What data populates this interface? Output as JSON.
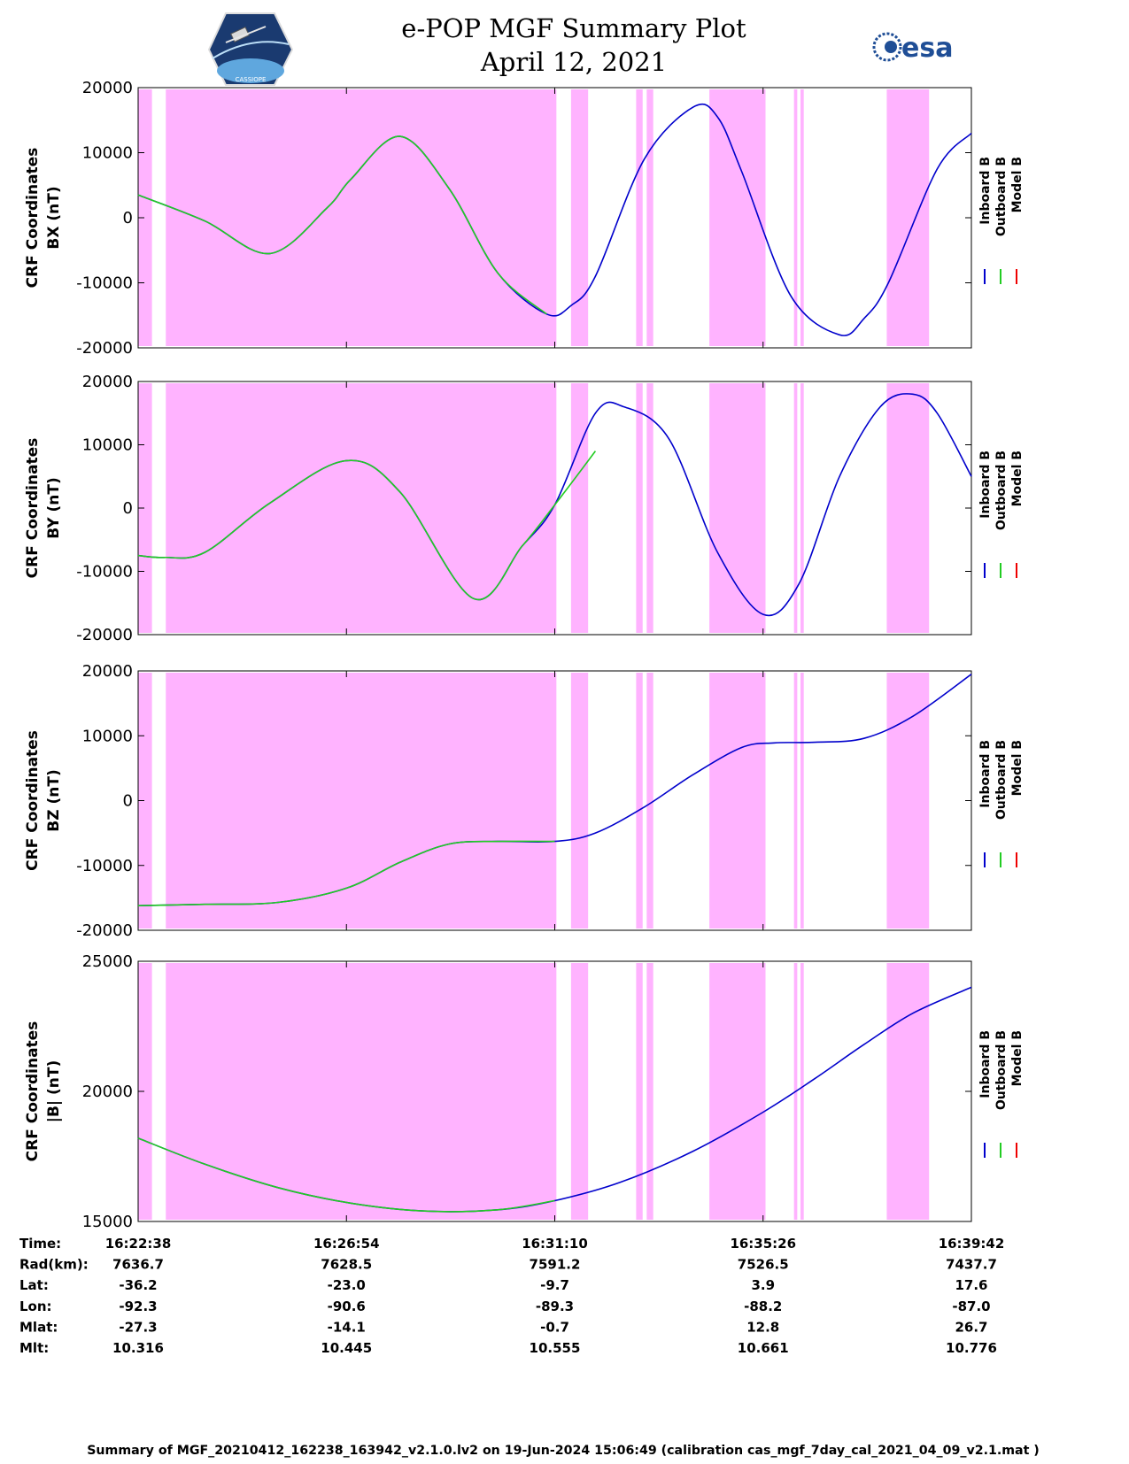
{
  "header": {
    "title_line1": "e-POP MGF Summary Plot",
    "title_line2": "April 12, 2021",
    "left_logo": "cassiope-mission-logo",
    "left_logo_text": "CASSIOPE",
    "right_logo": "esa-logo",
    "right_logo_text": "esa"
  },
  "colors": {
    "inboard": "#0000cc",
    "outboard": "#22cc22",
    "model": "#ee0000",
    "shade": "#ffb3ff"
  },
  "legend": {
    "inboard": "Inboard B",
    "outboard": "Outboard B",
    "model": "Model B"
  },
  "chart_data": {
    "type": "line",
    "x_unit": "UT time",
    "x_range": [
      "16:22:38",
      "16:39:42"
    ],
    "shaded_intervals": [
      [
        "16:22:38",
        "16:22:55"
      ],
      [
        "16:23:12",
        "16:31:12"
      ],
      [
        "16:31:30",
        "16:31:51"
      ],
      [
        "16:32:50",
        "16:32:58"
      ],
      [
        "16:33:03",
        "16:33:11"
      ],
      [
        "16:34:20",
        "16:35:29"
      ],
      [
        "16:36:04",
        "16:36:08"
      ],
      [
        "16:36:12",
        "16:36:16"
      ],
      [
        "16:37:58",
        "16:38:50"
      ]
    ],
    "panels": [
      {
        "id": "bx",
        "ylabel_line1": "CRF Coordinates",
        "ylabel_line2": "BX (nT)",
        "ylim": [
          -20000,
          20000
        ],
        "yticks": [
          20000,
          10000,
          0,
          -10000,
          -20000
        ],
        "ytick_labels": [
          "20000",
          "10000",
          "0",
          "-10000",
          "-20000"
        ],
        "time": [
          "16:22:38",
          "16:24:00",
          "16:25:20",
          "16:26:30",
          "16:27:00",
          "16:28:00",
          "16:29:00",
          "16:30:00",
          "16:31:00",
          "16:31:30",
          "16:32:00",
          "16:33:00",
          "16:34:00",
          "16:34:30",
          "16:35:00",
          "16:36:00",
          "16:37:00",
          "16:37:30",
          "16:38:00",
          "16:39:00",
          "16:39:42"
        ],
        "series": [
          {
            "name": "Inboard B",
            "key": "inboard",
            "values": [
              3500,
              -500,
              -5500,
              1500,
              6000,
              12500,
              4500,
              -8500,
              -14800,
              -13500,
              -9000,
              9000,
              17000,
              15500,
              7000,
              -12000,
              -18000,
              -15500,
              -10000,
              7500,
              13000
            ]
          },
          {
            "name": "Outboard B",
            "key": "outboard",
            "values": [
              3500,
              -500,
              -5500,
              1500,
              6000,
              12500,
              4500,
              -8500,
              -14800,
              null,
              null,
              null,
              null,
              null,
              null,
              null,
              null,
              null,
              null,
              null,
              null
            ]
          }
        ]
      },
      {
        "id": "by",
        "ylabel_line1": "CRF Coordinates",
        "ylabel_line2": "BY (nT)",
        "ylim": [
          -20000,
          20000
        ],
        "yticks": [
          20000,
          10000,
          0,
          -10000,
          -20000
        ],
        "ytick_labels": [
          "20000",
          "10000",
          "0",
          "-10000",
          "-20000"
        ],
        "time": [
          "16:22:38",
          "16:23:10",
          "16:24:00",
          "16:25:20",
          "16:26:54",
          "16:28:00",
          "16:29:30",
          "16:30:30",
          "16:31:10",
          "16:32:00",
          "16:32:35",
          "16:33:30",
          "16:34:30",
          "16:35:26",
          "16:36:10",
          "16:37:00",
          "16:37:50",
          "16:38:30",
          "16:39:00",
          "16:39:42"
        ],
        "series": [
          {
            "name": "Inboard B",
            "key": "inboard",
            "values": [
              -7500,
              -7800,
              -7000,
              800,
              7500,
              2500,
              -14300,
              -6000,
              500,
              15000,
              16000,
              11000,
              -7000,
              -16800,
              -12000,
              5000,
              16000,
              18000,
              15000,
              5000
            ]
          },
          {
            "name": "Outboard B",
            "key": "outboard",
            "values": [
              -7500,
              -7800,
              -7000,
              800,
              7500,
              2500,
              -14300,
              -6000,
              500,
              9000,
              null,
              null,
              null,
              null,
              null,
              null,
              null,
              null,
              null,
              null
            ]
          }
        ]
      },
      {
        "id": "bz",
        "ylabel_line1": "CRF Coordinates",
        "ylabel_line2": "BZ (nT)",
        "ylim": [
          -20000,
          20000
        ],
        "yticks": [
          20000,
          10000,
          0,
          -10000,
          -20000
        ],
        "ytick_labels": [
          "20000",
          "10000",
          "0",
          "-10000",
          "-20000"
        ],
        "time": [
          "16:22:38",
          "16:24:00",
          "16:25:30",
          "16:26:54",
          "16:28:00",
          "16:29:00",
          "16:30:00",
          "16:31:10",
          "16:32:00",
          "16:33:00",
          "16:34:00",
          "16:35:00",
          "16:35:40",
          "16:36:30",
          "16:37:30",
          "16:38:30",
          "16:39:42"
        ],
        "series": [
          {
            "name": "Inboard B",
            "key": "inboard",
            "values": [
              -16200,
              -16000,
              -15700,
              -13500,
              -9500,
              -6700,
              -6300,
              -6300,
              -5000,
              -1000,
              4000,
              8200,
              8900,
              9000,
              9600,
              13000,
              19500
            ]
          },
          {
            "name": "Outboard B",
            "key": "outboard",
            "values": [
              -16200,
              -16000,
              -15700,
              -13500,
              -9500,
              -6700,
              -6300,
              -6300,
              null,
              null,
              null,
              null,
              null,
              null,
              null,
              null,
              null
            ]
          }
        ]
      },
      {
        "id": "btot",
        "ylabel_line1": "CRF Coordinates",
        "ylabel_line2": "|B| (nT)",
        "ylim": [
          15000,
          25000
        ],
        "yticks": [
          25000,
          20000,
          15000
        ],
        "ytick_labels": [
          "25000",
          "20000",
          "15000"
        ],
        "time": [
          "16:22:38",
          "16:24:00",
          "16:25:30",
          "16:27:00",
          "16:28:30",
          "16:30:00",
          "16:31:10",
          "16:32:30",
          "16:34:00",
          "16:35:26",
          "16:36:30",
          "16:37:30",
          "16:38:30",
          "16:39:42"
        ],
        "series": [
          {
            "name": "Inboard B",
            "key": "inboard",
            "values": [
              18200,
              17200,
              16300,
              15700,
              15400,
              15450,
              15800,
              16500,
              17700,
              19200,
              20500,
              21800,
              23000,
              24000
            ]
          },
          {
            "name": "Outboard B",
            "key": "outboard",
            "values": [
              18200,
              17200,
              16300,
              15700,
              15400,
              15450,
              15800,
              null,
              null,
              null,
              null,
              null,
              null,
              null
            ]
          }
        ]
      }
    ]
  },
  "info_table": {
    "rows": [
      {
        "label": "Time:",
        "values": [
          "16:22:38",
          "16:26:54",
          "16:31:10",
          "16:35:26",
          "16:39:42"
        ]
      },
      {
        "label": "Rad(km):",
        "values": [
          "7636.7",
          "7628.5",
          "7591.2",
          "7526.5",
          "7437.7"
        ]
      },
      {
        "label": "Lat:",
        "values": [
          "-36.2",
          "-23.0",
          "-9.7",
          "3.9",
          "17.6"
        ]
      },
      {
        "label": "Lon:",
        "values": [
          "-92.3",
          "-90.6",
          "-89.3",
          "-88.2",
          "-87.0"
        ]
      },
      {
        "label": "Mlat:",
        "values": [
          "-27.3",
          "-14.1",
          "-0.7",
          "12.8",
          "26.7"
        ]
      },
      {
        "label": "Mlt:",
        "values": [
          "10.316",
          "10.445",
          "10.555",
          "10.661",
          "10.776"
        ]
      }
    ]
  },
  "footer": {
    "text": "Summary of MGF_20210412_162238_163942_v2.1.0.lv2 on 19-Jun-2024 15:06:49 (calibration cas_mgf_7day_cal_2021_04_09_v2.1.mat )"
  }
}
